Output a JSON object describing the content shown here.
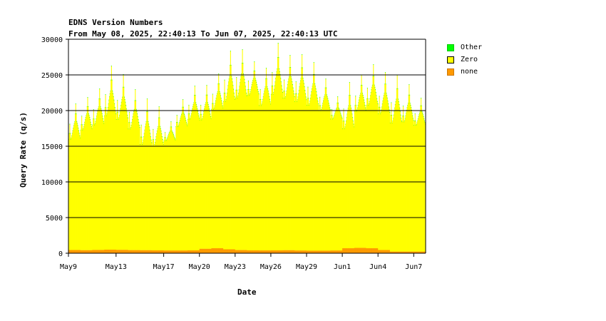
{
  "chart_data": {
    "type": "area",
    "title": "EDNS Version Numbers",
    "subtitle": "From May 08, 2025, 22:40:13 To Jun 07, 2025, 22:40:13 UTC",
    "xlabel": "Date",
    "ylabel": "Query Rate (q/s)",
    "ylim": [
      0,
      30000
    ],
    "yticks": [
      0,
      5000,
      10000,
      15000,
      20000,
      25000,
      30000
    ],
    "xlim_days": [
      "May 9",
      "Jun 8"
    ],
    "xticks": [
      "May9",
      "May13",
      "May17",
      "May20",
      "May23",
      "May26",
      "May29",
      "Jun1",
      "Jun4",
      "Jun7"
    ],
    "xtick_days": [
      0,
      4,
      8,
      11,
      14,
      17,
      20,
      23,
      26,
      29
    ],
    "grid": "horizontal",
    "legend_position": "right",
    "series": [
      {
        "name": "Other",
        "color": "#00ff00"
      },
      {
        "name": "Zero",
        "color": "#ffff00"
      },
      {
        "name": "none",
        "color": "#ff9900"
      }
    ],
    "daily_total": [
      {
        "day": 0,
        "min": 15800,
        "max": 21000
      },
      {
        "day": 1,
        "min": 17100,
        "max": 21900
      },
      {
        "day": 2,
        "min": 17800,
        "max": 23100
      },
      {
        "day": 3,
        "min": 19000,
        "max": 26300
      },
      {
        "day": 4,
        "min": 18500,
        "max": 25100
      },
      {
        "day": 5,
        "min": 17200,
        "max": 23000
      },
      {
        "day": 6,
        "min": 15000,
        "max": 21700
      },
      {
        "day": 7,
        "min": 14800,
        "max": 20600
      },
      {
        "day": 8,
        "min": 15700,
        "max": 18500
      },
      {
        "day": 9,
        "min": 17600,
        "max": 21600
      },
      {
        "day": 10,
        "min": 18600,
        "max": 23500
      },
      {
        "day": 11,
        "min": 18500,
        "max": 23600
      },
      {
        "day": 12,
        "min": 20000,
        "max": 25200
      },
      {
        "day": 13,
        "min": 21000,
        "max": 28400
      },
      {
        "day": 14,
        "min": 21500,
        "max": 28600
      },
      {
        "day": 15,
        "min": 22000,
        "max": 26900
      },
      {
        "day": 16,
        "min": 20500,
        "max": 26000
      },
      {
        "day": 17,
        "min": 22000,
        "max": 29500
      },
      {
        "day": 18,
        "min": 21500,
        "max": 27800
      },
      {
        "day": 19,
        "min": 21000,
        "max": 27900
      },
      {
        "day": 20,
        "min": 20500,
        "max": 26800
      },
      {
        "day": 21,
        "min": 19800,
        "max": 24500
      },
      {
        "day": 22,
        "min": 18700,
        "max": 22000
      },
      {
        "day": 23,
        "min": 17200,
        "max": 24000
      },
      {
        "day": 24,
        "min": 19700,
        "max": 25000
      },
      {
        "day": 25,
        "min": 20500,
        "max": 26500
      },
      {
        "day": 26,
        "min": 19300,
        "max": 25400
      },
      {
        "day": 27,
        "min": 18000,
        "max": 25000
      },
      {
        "day": 28,
        "min": 18200,
        "max": 23700
      },
      {
        "day": 29,
        "min": 17800,
        "max": 21800
      }
    ],
    "daily_none": [
      450,
      420,
      460,
      500,
      470,
      430,
      420,
      400,
      380,
      380,
      400,
      620,
      700,
      550,
      440,
      400,
      390,
      400,
      420,
      380,
      360,
      360,
      380,
      700,
      750,
      700,
      450,
      230,
      230,
      230
    ]
  }
}
